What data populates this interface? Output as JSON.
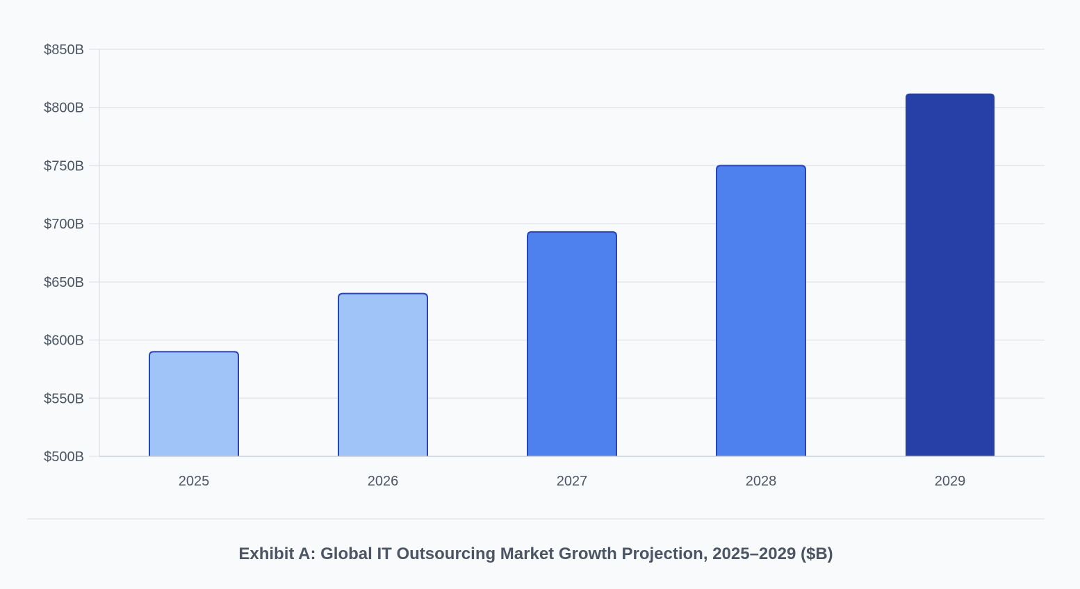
{
  "chart_data": {
    "type": "bar",
    "title": "Exhibit A: Global IT Outsourcing Market Growth Projection, 2025–2029 ($B)",
    "xlabel": "",
    "ylabel": "",
    "categories": [
      "2025",
      "2026",
      "2027",
      "2028",
      "2029"
    ],
    "values": [
      590,
      640,
      693,
      750,
      812
    ],
    "ylim": [
      500,
      850
    ],
    "yticks": [
      500,
      550,
      600,
      650,
      700,
      750,
      800,
      850
    ],
    "ytick_labels": [
      "$500B",
      "$550B",
      "$600B",
      "$650B",
      "$700B",
      "$750B",
      "$800B",
      "$850B"
    ],
    "grid": true,
    "legend": "none",
    "colors": {
      "bars": [
        "#a0c3f8",
        "#a0c3f8",
        "#4f81ee",
        "#4f81ee",
        "#2640a8"
      ],
      "bar_outline": "#2a44b5",
      "grid": "#e5e7eb",
      "text": "#4b5563"
    }
  }
}
